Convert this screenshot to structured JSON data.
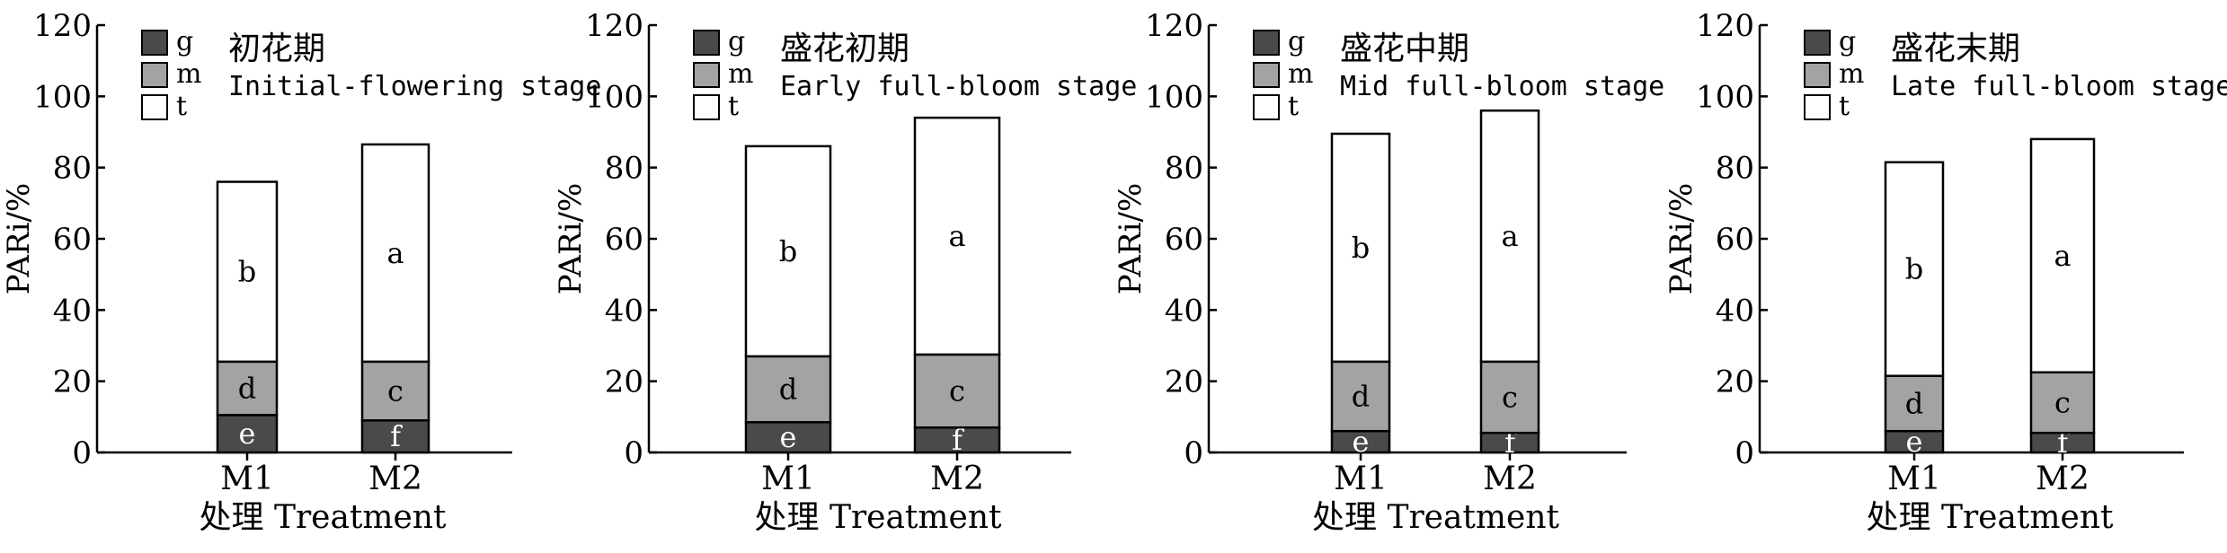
{
  "legend": [
    {
      "key": "g",
      "label": "g",
      "color": "#4a4a4a"
    },
    {
      "key": "m",
      "label": "m",
      "color": "#a3a3a3"
    },
    {
      "key": "t",
      "label": "t",
      "color": "#ffffff"
    }
  ],
  "ylabel": "PARi/%",
  "xlabel": "处理 Treatment",
  "chart_data": [
    {
      "type": "bar",
      "stacked": true,
      "title": "初花期",
      "subtitle": "Initial-flowering stage",
      "categories": [
        "M1",
        "M2"
      ],
      "series": [
        {
          "name": "g",
          "values": [
            10.5,
            9
          ],
          "labels": [
            "e",
            "f"
          ]
        },
        {
          "name": "m",
          "values": [
            15,
            16.5
          ],
          "labels": [
            "d",
            "c"
          ]
        },
        {
          "name": "t",
          "values": [
            50.5,
            61
          ],
          "labels": [
            "b",
            "a"
          ]
        }
      ],
      "totals": [
        76,
        86.5
      ],
      "ylim": [
        0,
        120
      ],
      "yticks": [
        0,
        20,
        40,
        60,
        80,
        100,
        120
      ],
      "legend_position": "top-left"
    },
    {
      "type": "bar",
      "stacked": true,
      "title": "盛花初期",
      "subtitle": "Early full-bloom stage",
      "categories": [
        "M1",
        "M2"
      ],
      "series": [
        {
          "name": "g",
          "values": [
            8.5,
            7
          ],
          "labels": [
            "e",
            "f"
          ]
        },
        {
          "name": "m",
          "values": [
            18.5,
            20.5
          ],
          "labels": [
            "d",
            "c"
          ]
        },
        {
          "name": "t",
          "values": [
            59,
            66.5
          ],
          "labels": [
            "b",
            "a"
          ]
        }
      ],
      "totals": [
        86,
        94
      ],
      "ylim": [
        0,
        120
      ],
      "yticks": [
        0,
        20,
        40,
        60,
        80,
        100,
        120
      ],
      "legend_position": "top-left"
    },
    {
      "type": "bar",
      "stacked": true,
      "title": "盛花中期",
      "subtitle": "Mid full-bloom stage",
      "categories": [
        "M1",
        "M2"
      ],
      "series": [
        {
          "name": "g",
          "values": [
            6,
            5.5
          ],
          "labels": [
            "e",
            "f"
          ]
        },
        {
          "name": "m",
          "values": [
            19.5,
            20
          ],
          "labels": [
            "d",
            "c"
          ]
        },
        {
          "name": "t",
          "values": [
            64,
            70.5
          ],
          "labels": [
            "b",
            "a"
          ]
        }
      ],
      "totals": [
        89.5,
        96
      ],
      "ylim": [
        0,
        120
      ],
      "yticks": [
        0,
        20,
        40,
        60,
        80,
        100,
        120
      ],
      "legend_position": "top-left"
    },
    {
      "type": "bar",
      "stacked": true,
      "title": "盛花末期",
      "subtitle": "Late full-bloom stage",
      "categories": [
        "M1",
        "M2"
      ],
      "series": [
        {
          "name": "g",
          "values": [
            6,
            5.5
          ],
          "labels": [
            "e",
            "f"
          ]
        },
        {
          "name": "m",
          "values": [
            15.5,
            17
          ],
          "labels": [
            "d",
            "c"
          ]
        },
        {
          "name": "t",
          "values": [
            60,
            65.5
          ],
          "labels": [
            "b",
            "a"
          ]
        }
      ],
      "totals": [
        81.5,
        88
      ],
      "ylim": [
        0,
        120
      ],
      "yticks": [
        0,
        20,
        40,
        60,
        80,
        100,
        120
      ],
      "legend_position": "top-left"
    }
  ]
}
